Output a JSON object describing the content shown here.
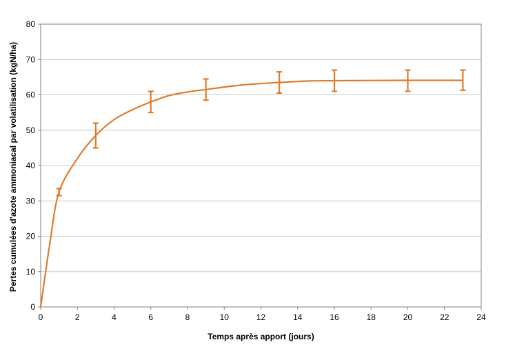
{
  "chart_data": {
    "type": "line",
    "title": "",
    "xlabel": "Temps après apport (jours)",
    "ylabel": "Pertes cumulées d'azote ammoniacal par volatilisation (kgN/ha)",
    "xlim": [
      0,
      24
    ],
    "ylim": [
      0,
      80
    ],
    "x_ticks": [
      0,
      2,
      4,
      6,
      8,
      10,
      12,
      14,
      16,
      18,
      20,
      22,
      24
    ],
    "y_ticks": [
      0,
      10,
      20,
      30,
      40,
      50,
      60,
      70,
      80
    ],
    "grid": "horizontal",
    "legend": "none",
    "series": [
      {
        "color": "#E07B2A",
        "points": [
          {
            "x": 0,
            "y": 0
          },
          {
            "x": 0.5,
            "y": 18
          },
          {
            "x": 1,
            "y": 32.5
          },
          {
            "x": 2,
            "y": 42
          },
          {
            "x": 3,
            "y": 48.5
          },
          {
            "x": 4,
            "y": 53
          },
          {
            "x": 5,
            "y": 55.8
          },
          {
            "x": 6,
            "y": 58
          },
          {
            "x": 7,
            "y": 59.8
          },
          {
            "x": 8,
            "y": 60.8
          },
          {
            "x": 9,
            "y": 61.5
          },
          {
            "x": 11,
            "y": 62.8
          },
          {
            "x": 13,
            "y": 63.5
          },
          {
            "x": 14.5,
            "y": 63.9
          },
          {
            "x": 16,
            "y": 64
          },
          {
            "x": 20,
            "y": 64.1
          },
          {
            "x": 23,
            "y": 64.1
          }
        ],
        "error_bars": [
          {
            "x": 1,
            "low": 31.5,
            "high": 33.5
          },
          {
            "x": 3,
            "low": 45,
            "high": 52
          },
          {
            "x": 6,
            "low": 55,
            "high": 61
          },
          {
            "x": 9,
            "low": 58.5,
            "high": 64.5
          },
          {
            "x": 13,
            "low": 60.5,
            "high": 66.5
          },
          {
            "x": 16,
            "low": 61,
            "high": 67
          },
          {
            "x": 20,
            "low": 61,
            "high": 67
          },
          {
            "x": 23,
            "low": 61.3,
            "high": 67
          }
        ]
      }
    ]
  }
}
